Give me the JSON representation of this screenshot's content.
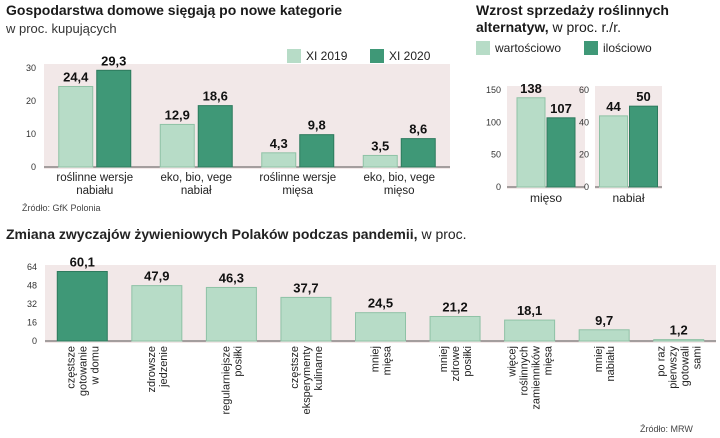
{
  "colors": {
    "light": "#b7dcc7",
    "light_edge": "#8fc2a6",
    "dark": "#3f9877",
    "dark_edge": "#2d7a5d",
    "panel_bg": "#f2e8e8",
    "axis": "#555555",
    "grid": "#d8caca"
  },
  "chart_data": [
    {
      "id": "chart1",
      "type": "bar",
      "title": "Gospodarstwa domowe sięgają po nowe kategorie",
      "subtitle": "w proc. kupujących",
      "ylim": [
        0,
        30
      ],
      "yticks": [
        "0",
        "10",
        "20",
        "30"
      ],
      "categories": [
        [
          "roślinne wersje",
          "nabiału"
        ],
        [
          "eko, bio, vege",
          "nabiał"
        ],
        [
          "roślinne wersje",
          "mięsa"
        ],
        [
          "eko, bio, vege",
          "mięso"
        ]
      ],
      "series": [
        {
          "name": "XI 2019",
          "values": [
            24.4,
            12.9,
            4.3,
            3.5
          ],
          "labels": [
            "24,4",
            "12,9",
            "4,3",
            "3,5"
          ]
        },
        {
          "name": "XI 2020",
          "values": [
            29.3,
            18.6,
            9.8,
            8.6
          ],
          "labels": [
            "29,3",
            "18,6",
            "9,8",
            "8,6"
          ]
        }
      ],
      "source": "Źródło: GfK Polonia"
    },
    {
      "id": "chart2",
      "type": "bar",
      "title_line1": "Wzrost sprzedaży roślinnych",
      "title_line2_bold": "alternatyw,",
      "title_line2_rest": " w proc. r./r.",
      "legend": [
        "wartościowo",
        "ilościowo"
      ],
      "panels": [
        {
          "category": "mięso",
          "ylim": [
            0,
            150
          ],
          "yticks": [
            "0",
            "50",
            "100",
            "150"
          ],
          "values": [
            138,
            107
          ],
          "labels": [
            "138",
            "107"
          ]
        },
        {
          "category": "nabiał",
          "ylim": [
            0,
            60
          ],
          "yticks": [
            "0",
            "20",
            "40",
            "60"
          ],
          "values": [
            44,
            50
          ],
          "labels": [
            "44",
            "50"
          ]
        }
      ]
    },
    {
      "id": "chart3",
      "type": "bar",
      "title_bold": "Zmiana zwyczajów żywieniowych Polaków podczas pandemii,",
      "title_rest": " w proc.",
      "ylim": [
        0,
        64
      ],
      "yticks": [
        "0",
        "16",
        "32",
        "48",
        "64"
      ],
      "categories": [
        [
          "częstsze",
          "gotowanie",
          "w domu"
        ],
        [
          "zdrowsze",
          "jedzenie"
        ],
        [
          "regularniejsze",
          "posiłki"
        ],
        [
          "częstsze",
          "eksperymenty",
          "kulinarne"
        ],
        [
          "mniej",
          "mięsa"
        ],
        [
          "mniej",
          "zdrowe",
          "posiłki"
        ],
        [
          "więcej",
          "roślinnych",
          "zamienników",
          "mięsa"
        ],
        [
          "mniej",
          "nabiału"
        ],
        [
          "po raz",
          "pierwszy",
          "gotowali",
          "sami"
        ]
      ],
      "values": [
        60.1,
        47.9,
        46.3,
        37.7,
        24.5,
        21.2,
        18.1,
        9.7,
        1.2
      ],
      "labels": [
        "60,1",
        "47,9",
        "46,3",
        "37,7",
        "24,5",
        "21,2",
        "18,1",
        "9,7",
        "1,2"
      ],
      "source": "Źródło: MRW"
    }
  ]
}
